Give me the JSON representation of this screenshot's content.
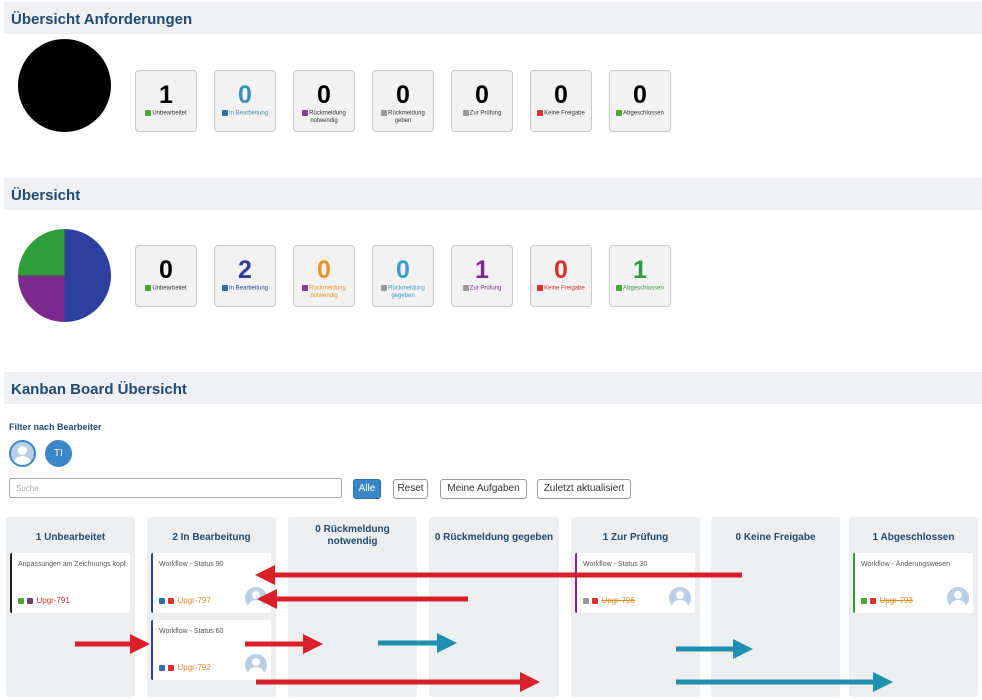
{
  "sections": {
    "anforderungen_title": "Übersicht Anforderungen",
    "uebersicht_title": "Übersicht",
    "kanban_title": "Kanban Board Übersicht"
  },
  "anforderungen": {
    "pie_color": "#000000",
    "tiles": [
      {
        "value": "1",
        "label": "Unbearbeitet",
        "icon": "thumbs-up-icon",
        "color": "#000000"
      },
      {
        "value": "0",
        "label": "In Bearbeitung",
        "icon": "hand-icon",
        "color": "#3a8fb7"
      },
      {
        "value": "0",
        "label": "Rückmeldung notwendig",
        "icon": "question-icon",
        "color": "#000000"
      },
      {
        "value": "0",
        "label": "Rückmeldung geben",
        "icon": "exclamation-icon",
        "color": "#000000"
      },
      {
        "value": "0",
        "label": "Zur Prüfung",
        "icon": "binoculars-icon",
        "color": "#000000"
      },
      {
        "value": "0",
        "label": "Keine Freigabe",
        "icon": "forbidden-icon",
        "color": "#000000"
      },
      {
        "value": "0",
        "label": "Abgeschlossen",
        "icon": "checkmark-icon",
        "color": "#000000"
      }
    ]
  },
  "uebersicht": {
    "pie_colors": [
      "#2e3f9e",
      "#7a2a8c",
      "#2e9e3a"
    ],
    "tiles": [
      {
        "value": "0",
        "label": "Unbearbeitet",
        "icon": "thumbs-up-icon",
        "color": "#000000"
      },
      {
        "value": "2",
        "label": "In Bearbeitung",
        "icon": "hand-icon",
        "color": "#2e3f9e"
      },
      {
        "value": "0",
        "label": "Rückmeldung notwendig",
        "icon": "question-icon",
        "color": "#e8922a"
      },
      {
        "value": "0",
        "label": "Rückmeldung gegeben",
        "icon": "exclamation-icon",
        "color": "#3a9ec8"
      },
      {
        "value": "1",
        "label": "Zur Prüfung",
        "icon": "binoculars-icon",
        "color": "#7a2a8c"
      },
      {
        "value": "0",
        "label": "Keine Freigabe",
        "icon": "forbidden-icon",
        "color": "#d9302a"
      },
      {
        "value": "1",
        "label": "Abgeschlossen",
        "icon": "checkmark-icon",
        "color": "#2e9e3a"
      }
    ]
  },
  "kanban": {
    "filter_label": "Filter nach Bearbeiter",
    "avatar_initials": "TI",
    "search_placeholder": "Suche",
    "buttons": {
      "alle": "Alle",
      "reset": "Reset",
      "meine": "Meine Aufgaben",
      "zuletzt": "Zuletzt aktualisiert"
    },
    "columns": [
      {
        "title": "1 Unbearbeitet"
      },
      {
        "title": "2 In Bearbeitung"
      },
      {
        "title": "0 Rückmeldung notwendig"
      },
      {
        "title": "0 Rückmeldung gegeben"
      },
      {
        "title": "1 Zur Prüfung"
      },
      {
        "title": "0 Keine Freigabe"
      },
      {
        "title": "1 Abgeschlossen"
      }
    ],
    "cards": {
      "c1": {
        "title": "Anpassungen am Zeichnungs kopf",
        "link": "Upgr-791",
        "border": "#222222"
      },
      "c2": {
        "title": "Workflow - Status 90",
        "link": "Upgr-797",
        "border": "#2e3f9e"
      },
      "c3": {
        "title": "Workflow - Status 60",
        "link": "Upgr-792",
        "border": "#2e3f9e"
      },
      "c4": {
        "title": "Workflow - Status 30",
        "link": "Upgr-796",
        "border": "#7a2a8c"
      },
      "c5": {
        "title": "Workflow - Änderungswesen",
        "link": "Upgr-793",
        "border": "#2e9e3a"
      }
    },
    "arrow_colors": {
      "red": "#d9202a",
      "teal": "#1e8fae"
    }
  }
}
